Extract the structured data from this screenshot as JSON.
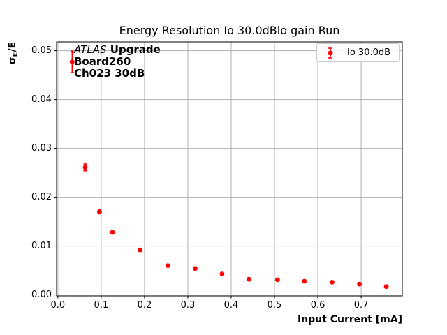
{
  "figure": {
    "background": "#ffffff"
  },
  "chart": {
    "title": "Energy Resolution Io 30.0dBlo gain Run",
    "xlabel": "Input Current [mA]",
    "ylabel": {
      "symbol": "σ",
      "subscript": "E",
      "suffix": "/E"
    },
    "annotation": {
      "experiment": "ATLAS",
      "tag": "Upgrade",
      "line2": "Board260",
      "line3": "Ch023 30dB"
    },
    "legend": {
      "label": "Io 30.0dB"
    },
    "colors": {
      "series": "#ff0000",
      "grid": "#b0b0b0",
      "spine": "#000000",
      "legend_border": "#cccccc",
      "text": "#000000"
    }
  },
  "chart_data": {
    "type": "scatter",
    "title": "Energy Resolution Io 30.0dBlo gain Run",
    "xlabel": "Input Current [mA]",
    "ylabel": "σ_E/E",
    "xlim": [
      -0.003,
      0.795
    ],
    "ylim": [
      -0.0002,
      0.0518
    ],
    "x_ticks": [
      0.0,
      0.1,
      0.2,
      0.3,
      0.4,
      0.5,
      0.6,
      0.7
    ],
    "x_tick_labels": [
      "0.0",
      "0.1",
      "0.2",
      "0.3",
      "0.4",
      "0.5",
      "0.6",
      "0.7"
    ],
    "y_ticks": [
      0.0,
      0.01,
      0.02,
      0.03,
      0.04,
      0.05
    ],
    "y_tick_labels": [
      "0.00",
      "0.01",
      "0.02",
      "0.03",
      "0.04",
      "0.05"
    ],
    "grid": true,
    "legend_position": "upper right",
    "series": [
      {
        "name": "Io 30.0dB",
        "color": "#ff0000",
        "marker": "circle-with-errorbar",
        "points": [
          {
            "x": 0.033,
            "y": 0.0477,
            "yerr": 0.0022
          },
          {
            "x": 0.063,
            "y": 0.0261,
            "yerr": 0.0007
          },
          {
            "x": 0.096,
            "y": 0.017,
            "yerr": 0.0004
          },
          {
            "x": 0.126,
            "y": 0.0128,
            "yerr": 0.0003
          },
          {
            "x": 0.19,
            "y": 0.0092,
            "yerr": 0.0002
          },
          {
            "x": 0.254,
            "y": 0.006,
            "yerr": 0.0002
          },
          {
            "x": 0.317,
            "y": 0.0054,
            "yerr": 0.0002
          },
          {
            "x": 0.379,
            "y": 0.0043,
            "yerr": 0.0001
          },
          {
            "x": 0.441,
            "y": 0.0032,
            "yerr": 0.0001
          },
          {
            "x": 0.507,
            "y": 0.0031,
            "yerr": 0.0001
          },
          {
            "x": 0.569,
            "y": 0.0028,
            "yerr": 0.0001
          },
          {
            "x": 0.633,
            "y": 0.0026,
            "yerr": 0.0001
          },
          {
            "x": 0.696,
            "y": 0.0022,
            "yerr": 0.0001
          },
          {
            "x": 0.758,
            "y": 0.0017,
            "yerr": 0.0001
          }
        ]
      }
    ]
  }
}
